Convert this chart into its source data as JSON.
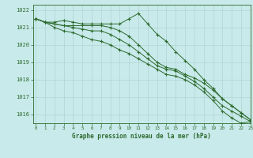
{
  "title": "Graphe pression niveau de la mer (hPa)",
  "bg_color": "#c8eaea",
  "grid_color": "#b0d4d4",
  "line_color": "#2d6a2d",
  "xlabel": "Graphe pression niveau de la mer (hPa)",
  "xlim": [
    -0.3,
    23
  ],
  "ylim": [
    1015.5,
    1022.3
  ],
  "yticks": [
    1016,
    1017,
    1018,
    1019,
    1020,
    1021,
    1022
  ],
  "xticks": [
    0,
    1,
    2,
    3,
    4,
    5,
    6,
    7,
    8,
    9,
    10,
    11,
    12,
    13,
    14,
    15,
    16,
    17,
    18,
    19,
    20,
    21,
    22,
    23
  ],
  "series": [
    [
      1021.5,
      1021.3,
      1021.3,
      1021.4,
      1021.3,
      1021.2,
      1021.2,
      1021.2,
      1021.2,
      1021.2,
      1021.5,
      1021.8,
      1021.2,
      1020.6,
      1020.2,
      1019.6,
      1019.1,
      1018.6,
      1018.0,
      1017.5,
      1016.9,
      1016.5,
      1016.1,
      1015.7
    ],
    [
      1021.5,
      1021.3,
      1021.2,
      1021.1,
      1021.1,
      1021.1,
      1021.1,
      1021.1,
      1021.0,
      1020.8,
      1020.5,
      1020.0,
      1019.5,
      1019.0,
      1018.7,
      1018.6,
      1018.3,
      1018.1,
      1017.8,
      1017.4,
      1016.9,
      1016.5,
      1016.1,
      1015.7
    ],
    [
      1021.5,
      1021.3,
      1021.2,
      1021.1,
      1021.0,
      1020.9,
      1020.8,
      1020.8,
      1020.6,
      1020.3,
      1020.0,
      1019.6,
      1019.2,
      1018.8,
      1018.6,
      1018.5,
      1018.2,
      1017.9,
      1017.5,
      1017.0,
      1016.5,
      1016.2,
      1015.9,
      1015.6
    ],
    [
      1021.5,
      1021.3,
      1021.0,
      1020.8,
      1020.7,
      1020.5,
      1020.3,
      1020.2,
      1020.0,
      1019.7,
      1019.5,
      1019.2,
      1018.9,
      1018.6,
      1018.3,
      1018.2,
      1018.0,
      1017.7,
      1017.3,
      1016.8,
      1016.2,
      1015.8,
      1015.5,
      1015.6
    ]
  ]
}
